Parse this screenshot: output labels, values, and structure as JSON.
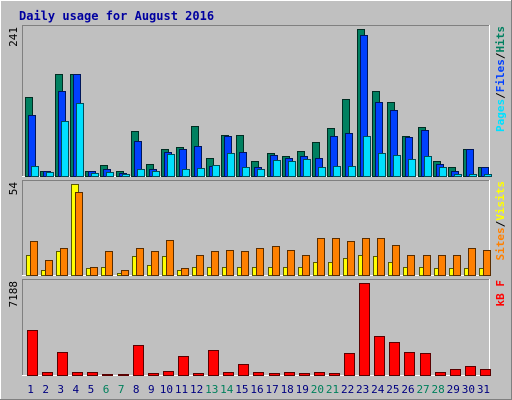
{
  "chart_data": {
    "type": "bar",
    "title": "Daily usage for August 2016",
    "categories": [
      "1",
      "2",
      "3",
      "4",
      "5",
      "6",
      "7",
      "8",
      "9",
      "10",
      "11",
      "12",
      "13",
      "14",
      "15",
      "16",
      "17",
      "18",
      "19",
      "20",
      "21",
      "22",
      "23",
      "24",
      "25",
      "26",
      "27",
      "28",
      "29",
      "30",
      "31"
    ],
    "weekend_categories": [
      "6",
      "7",
      "13",
      "14",
      "20",
      "21",
      "27",
      "28"
    ],
    "colors": {
      "background": "#c0c0c0",
      "title": "#0000a0",
      "hits": "#008060",
      "files": "#0040ff",
      "pages": "#00e0ff",
      "visits": "#ffff00",
      "sites": "#ff8000",
      "kbf": "#ff0000",
      "weekend_label": "#00805c",
      "weekday_label": "#000080"
    },
    "panels": [
      {
        "name": "hits-files-pages",
        "ymax_label": "241",
        "ylim": [
          0,
          241
        ],
        "legend": [
          "Pages",
          "Files",
          "Hits"
        ],
        "series": [
          {
            "name": "Hits",
            "values": [
              129,
              9,
              168,
              167,
              9,
              18,
              8,
              73,
              19,
              45,
              48,
              82,
              30,
              68,
              67,
              25,
              38,
              32,
              41,
              55,
              79,
              126,
              241,
              139,
              121,
              66,
              81,
              25,
              14,
              44,
              15
            ]
          },
          {
            "name": "Files",
            "values": [
              100,
              9,
              140,
              167,
              8,
              11,
              5,
              57,
              11,
              39,
              45,
              49,
              17,
              65,
              39,
              14,
              35,
              30,
              33,
              30,
              65,
              70,
              231,
              122,
              108,
              64,
              76,
              19,
              9,
              44,
              15
            ]
          },
          {
            "name": "Pages",
            "values": [
              17,
              6,
              90,
              120,
              5,
              7,
              3,
              12,
              8,
              36,
              11,
              13,
              18,
              38,
              14,
              11,
              27,
              25,
              28,
              15,
              17,
              17,
              65,
              38,
              35,
              28,
              33,
              15,
              4,
              4,
              4
            ]
          }
        ]
      },
      {
        "name": "visits-sites",
        "ymax_label": "54",
        "ylim": [
          0,
          54
        ],
        "legend": [
          "Sites",
          "Visits"
        ],
        "series": [
          {
            "name": "Visits",
            "values": [
              12,
              3,
              14,
              54,
              4,
              5,
              1,
              11,
              6,
              11,
              3,
              5,
              5,
              5,
              5,
              5,
              5,
              5,
              5,
              8,
              8,
              10,
              12,
              11,
              8,
              5,
              5,
              4,
              4,
              4,
              4
            ]
          },
          {
            "name": "Sites",
            "values": [
              20,
              9,
              16,
              49,
              5,
              14,
              3,
              16,
              14,
              21,
              4,
              12,
              14,
              15,
              14,
              16,
              17,
              15,
              12,
              22,
              22,
              20,
              22,
              22,
              18,
              12,
              12,
              12,
              12,
              16,
              15
            ]
          }
        ]
      },
      {
        "name": "kbf",
        "ymax_label": "7188",
        "ylim": [
          0,
          7188
        ],
        "legend": [
          "kB F"
        ],
        "series": [
          {
            "name": "kB F",
            "values": [
              3520,
              270,
              1760,
              270,
              200,
              90,
              90,
              2330,
              120,
              350,
              1520,
              150,
              1960,
              270,
              860,
              200,
              150,
              240,
              150,
              240,
              150,
              1690,
              7188,
              3030,
              2570,
              1760,
              1700,
              220,
              500,
              680,
              490
            ]
          }
        ]
      }
    ]
  }
}
